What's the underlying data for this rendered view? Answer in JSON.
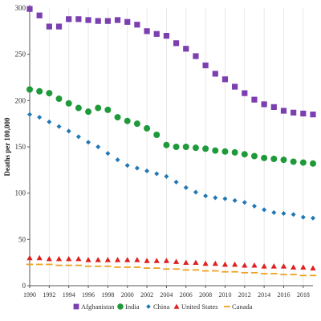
{
  "chart_data": {
    "type": "scatter",
    "title": "",
    "xlabel": "",
    "ylabel": "Deaths per 100,000",
    "xlim": [
      1990,
      2019
    ],
    "ylim": [
      0,
      300
    ],
    "x_ticks": [
      1990,
      1992,
      1994,
      1996,
      1998,
      2000,
      2002,
      2004,
      2006,
      2008,
      2010,
      2012,
      2014,
      2016,
      2018
    ],
    "y_ticks": [
      0,
      50,
      100,
      150,
      200,
      250,
      300
    ],
    "grid": "vertical",
    "legend_position": "bottom",
    "x": [
      1990,
      1991,
      1992,
      1993,
      1994,
      1995,
      1996,
      1997,
      1998,
      1999,
      2000,
      2001,
      2002,
      2003,
      2004,
      2005,
      2006,
      2007,
      2008,
      2009,
      2010,
      2011,
      2012,
      2013,
      2014,
      2015,
      2016,
      2017,
      2018,
      2019
    ],
    "series": [
      {
        "name": "Afghanistan",
        "color": "#7b3fb0",
        "marker": "square",
        "values": [
          299,
          292,
          280,
          280,
          288,
          288,
          287,
          286,
          286,
          287,
          285,
          282,
          275,
          272,
          270,
          262,
          256,
          248,
          238,
          229,
          223,
          215,
          208,
          201,
          196,
          193,
          189,
          187,
          186,
          185
        ]
      },
      {
        "name": "India",
        "color": "#1f9a3a",
        "marker": "circle",
        "values": [
          212,
          210,
          208,
          202,
          197,
          192,
          188,
          192,
          190,
          182,
          178,
          175,
          170,
          163,
          152,
          150,
          150,
          149,
          148,
          146,
          145,
          144,
          142,
          140,
          138,
          137,
          136,
          134,
          133,
          132
        ]
      },
      {
        "name": "China",
        "color": "#1f77b4",
        "marker": "diamond",
        "values": [
          185,
          182,
          177,
          172,
          167,
          161,
          155,
          150,
          143,
          136,
          130,
          127,
          124,
          121,
          118,
          112,
          106,
          101,
          97,
          95,
          94,
          92,
          90,
          86,
          82,
          79,
          78,
          77,
          74,
          73
        ]
      },
      {
        "name": "United States",
        "color": "#e02020",
        "marker": "triangle",
        "values": [
          30,
          30,
          29,
          29,
          29,
          29,
          28,
          28,
          28,
          28,
          28,
          28,
          27,
          27,
          27,
          26,
          25,
          25,
          24,
          24,
          23,
          23,
          22,
          22,
          21,
          21,
          21,
          20,
          20,
          19
        ]
      },
      {
        "name": "Canada",
        "color": "#f0a020",
        "marker": "dash",
        "values": [
          23,
          23,
          23,
          22,
          22,
          22,
          21,
          21,
          21,
          20,
          20,
          20,
          19,
          19,
          18,
          18,
          17,
          17,
          16,
          16,
          15,
          15,
          14,
          14,
          13,
          13,
          12,
          12,
          11,
          11
        ]
      }
    ]
  }
}
